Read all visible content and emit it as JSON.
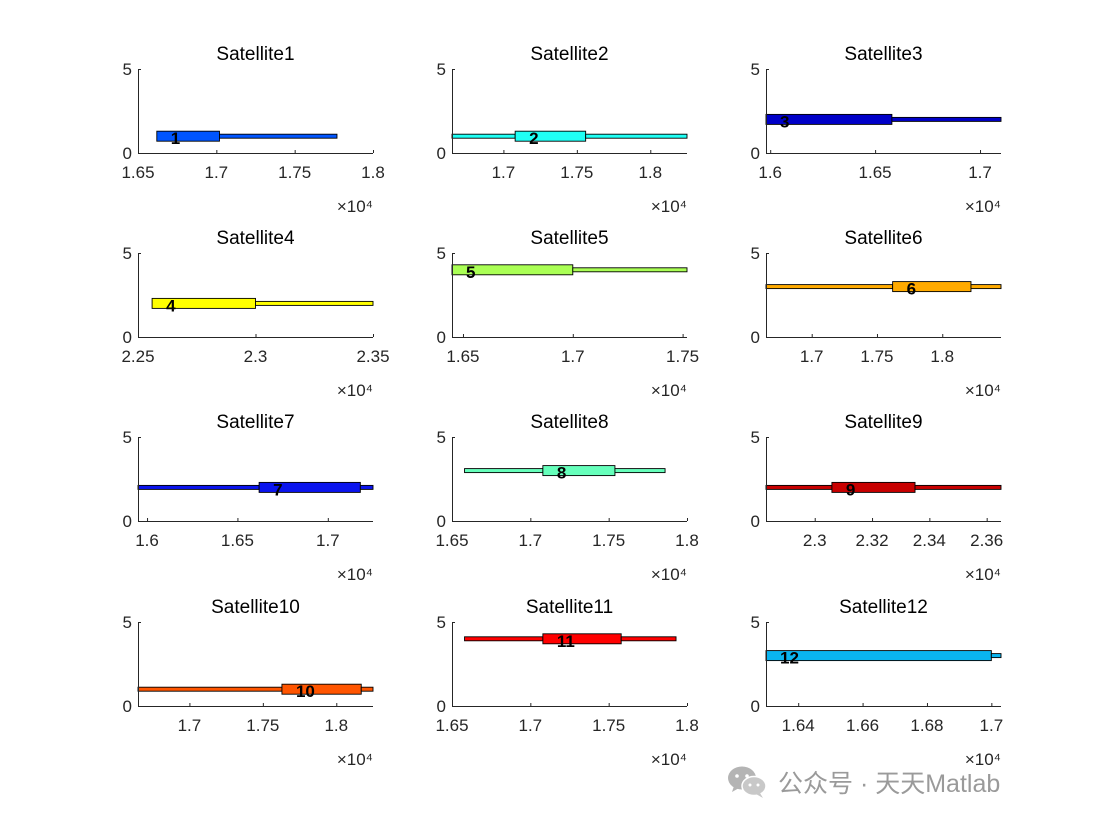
{
  "chart_data": [
    {
      "type": "bar",
      "title": "Satellite1",
      "label": "1",
      "color": "#0055ff",
      "exponent": "×10⁴",
      "xlim": [
        16500,
        18000
      ],
      "ylim": [
        0,
        5
      ],
      "yticks": [
        0,
        5
      ],
      "xticks": [
        16500,
        17000,
        17500,
        18000
      ],
      "xtick_labels": [
        "1.65",
        "1.7",
        "1.75",
        "1.8"
      ],
      "bars": [
        {
          "start": 16620,
          "end": 17020,
          "y": 1,
          "kind": "thick"
        },
        {
          "start": 17020,
          "end": 17770,
          "y": 1,
          "kind": "thin"
        }
      ]
    },
    {
      "type": "bar",
      "title": "Satellite2",
      "label": "2",
      "color": "#1ffff5",
      "exponent": "×10⁴",
      "xlim": [
        16650,
        18250
      ],
      "ylim": [
        0,
        5
      ],
      "yticks": [
        0,
        5
      ],
      "xticks": [
        17000,
        17500,
        18000
      ],
      "xtick_labels": [
        "1.7",
        "1.75",
        "1.8"
      ],
      "bars": [
        {
          "start": 16650,
          "end": 17080,
          "y": 1,
          "kind": "thin"
        },
        {
          "start": 17080,
          "end": 17560,
          "y": 1,
          "kind": "thick"
        },
        {
          "start": 17560,
          "end": 18250,
          "y": 1,
          "kind": "thin"
        }
      ]
    },
    {
      "type": "bar",
      "title": "Satellite3",
      "label": "3",
      "color": "#0000c8",
      "exponent": "×10⁴",
      "xlim": [
        15980,
        17100
      ],
      "ylim": [
        0,
        5
      ],
      "yticks": [
        0,
        5
      ],
      "xticks": [
        16000,
        16500,
        17000
      ],
      "xtick_labels": [
        "1.6",
        "1.65",
        "1.7"
      ],
      "bars": [
        {
          "start": 15980,
          "end": 16580,
          "y": 2,
          "kind": "thick"
        },
        {
          "start": 16580,
          "end": 17100,
          "y": 2,
          "kind": "thin"
        }
      ]
    },
    {
      "type": "bar",
      "title": "Satellite4",
      "label": "4",
      "color": "#ffff00",
      "exponent": "×10⁴",
      "xlim": [
        22500,
        23500
      ],
      "ylim": [
        0,
        5
      ],
      "yticks": [
        0,
        5
      ],
      "xticks": [
        22500,
        23000,
        23500
      ],
      "xtick_labels": [
        "2.25",
        "2.3",
        "2.35"
      ],
      "bars": [
        {
          "start": 22560,
          "end": 23000,
          "y": 2,
          "kind": "thick"
        },
        {
          "start": 23000,
          "end": 23500,
          "y": 2,
          "kind": "thin"
        }
      ]
    },
    {
      "type": "bar",
      "title": "Satellite5",
      "label": "5",
      "color": "#aaff55",
      "exponent": "×10⁴",
      "xlim": [
        16450,
        17520
      ],
      "ylim": [
        0,
        5
      ],
      "yticks": [
        0,
        5
      ],
      "xticks": [
        16500,
        17000,
        17500
      ],
      "xtick_labels": [
        "1.65",
        "1.7",
        "1.75"
      ],
      "bars": [
        {
          "start": 16450,
          "end": 17000,
          "y": 4,
          "kind": "thick"
        },
        {
          "start": 17000,
          "end": 17520,
          "y": 4,
          "kind": "thin"
        }
      ]
    },
    {
      "type": "bar",
      "title": "Satellite6",
      "label": "6",
      "color": "#ffaa00",
      "exponent": "×10⁴",
      "xlim": [
        16650,
        18450
      ],
      "ylim": [
        0,
        5
      ],
      "yticks": [
        0,
        5
      ],
      "xticks": [
        17000,
        17500,
        18000
      ],
      "xtick_labels": [
        "1.7",
        "1.75",
        "1.8"
      ],
      "bars": [
        {
          "start": 16650,
          "end": 17620,
          "y": 3,
          "kind": "thin"
        },
        {
          "start": 17620,
          "end": 18220,
          "y": 3,
          "kind": "thick"
        },
        {
          "start": 18220,
          "end": 18450,
          "y": 3,
          "kind": "thin"
        }
      ]
    },
    {
      "type": "bar",
      "title": "Satellite7",
      "label": "7",
      "color": "#0a14ee",
      "exponent": "×10⁴",
      "xlim": [
        15950,
        17250
      ],
      "ylim": [
        0,
        5
      ],
      "yticks": [
        0,
        5
      ],
      "xticks": [
        16000,
        16500,
        17000
      ],
      "xtick_labels": [
        "1.6",
        "1.65",
        "1.7"
      ],
      "bars": [
        {
          "start": 15950,
          "end": 16620,
          "y": 2,
          "kind": "thin"
        },
        {
          "start": 16620,
          "end": 17180,
          "y": 2,
          "kind": "thick"
        },
        {
          "start": 17180,
          "end": 17250,
          "y": 2,
          "kind": "thin"
        }
      ]
    },
    {
      "type": "bar",
      "title": "Satellite8",
      "label": "8",
      "color": "#66ffbb",
      "exponent": "×10⁴",
      "xlim": [
        16500,
        18000
      ],
      "ylim": [
        0,
        5
      ],
      "yticks": [
        0,
        5
      ],
      "xticks": [
        16500,
        17000,
        17500,
        18000
      ],
      "xtick_labels": [
        "1.65",
        "1.7",
        "1.75",
        "1.8"
      ],
      "bars": [
        {
          "start": 16580,
          "end": 17080,
          "y": 3,
          "kind": "thin"
        },
        {
          "start": 17080,
          "end": 17540,
          "y": 3,
          "kind": "thick"
        },
        {
          "start": 17540,
          "end": 17860,
          "y": 3,
          "kind": "thin"
        }
      ]
    },
    {
      "type": "bar",
      "title": "Satellite9",
      "label": "9",
      "color": "#c80000",
      "exponent": "×10⁴",
      "xlim": [
        22830,
        23650
      ],
      "ylim": [
        0,
        5
      ],
      "yticks": [
        0,
        5
      ],
      "xticks": [
        23000,
        23200,
        23400,
        23600
      ],
      "xtick_labels": [
        "2.3",
        "2.32",
        "2.34",
        "2.36"
      ],
      "bars": [
        {
          "start": 22830,
          "end": 23060,
          "y": 2,
          "kind": "thin"
        },
        {
          "start": 23060,
          "end": 23350,
          "y": 2,
          "kind": "thick"
        },
        {
          "start": 23350,
          "end": 23650,
          "y": 2,
          "kind": "thin"
        }
      ]
    },
    {
      "type": "bar",
      "title": "Satellite10",
      "label": "10",
      "color": "#ff5500",
      "exponent": "×10⁴",
      "xlim": [
        16650,
        18250
      ],
      "ylim": [
        0,
        5
      ],
      "yticks": [
        0,
        5
      ],
      "xticks": [
        17000,
        17500,
        18000
      ],
      "xtick_labels": [
        "1.7",
        "1.75",
        "1.8"
      ],
      "bars": [
        {
          "start": 16650,
          "end": 17630,
          "y": 1,
          "kind": "thin"
        },
        {
          "start": 17630,
          "end": 18170,
          "y": 1,
          "kind": "thick"
        },
        {
          "start": 18170,
          "end": 18250,
          "y": 1,
          "kind": "thin"
        }
      ]
    },
    {
      "type": "bar",
      "title": "Satellite11",
      "label": "11",
      "color": "#ff0000",
      "exponent": "×10⁴",
      "xlim": [
        16500,
        18000
      ],
      "ylim": [
        0,
        5
      ],
      "yticks": [
        0,
        5
      ],
      "xticks": [
        16500,
        17000,
        17500,
        18000
      ],
      "xtick_labels": [
        "1.65",
        "1.7",
        "1.75",
        "1.8"
      ],
      "bars": [
        {
          "start": 16580,
          "end": 17080,
          "y": 4,
          "kind": "thin"
        },
        {
          "start": 17080,
          "end": 17580,
          "y": 4,
          "kind": "thick"
        },
        {
          "start": 17580,
          "end": 17930,
          "y": 4,
          "kind": "thin"
        }
      ]
    },
    {
      "type": "bar",
      "title": "Satellite12",
      "label": "12",
      "color": "#0ab4f0",
      "exponent": "×10⁴",
      "xlim": [
        16300,
        17030
      ],
      "ylim": [
        0,
        5
      ],
      "yticks": [
        0,
        5
      ],
      "xticks": [
        16400,
        16600,
        16800,
        17000
      ],
      "xtick_labels": [
        "1.64",
        "1.66",
        "1.68",
        "1.7"
      ],
      "bars": [
        {
          "start": 16300,
          "end": 17000,
          "y": 3,
          "kind": "thick"
        },
        {
          "start": 17000,
          "end": 17030,
          "y": 3,
          "kind": "thin"
        }
      ]
    }
  ],
  "watermark": {
    "icon": "wechat-icon",
    "text": "公众号 · 天天Matlab"
  }
}
